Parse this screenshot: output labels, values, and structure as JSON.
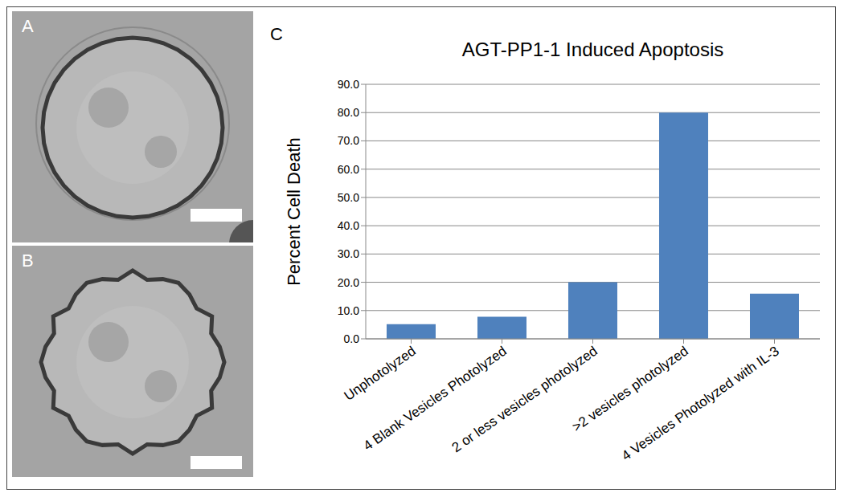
{
  "panel_labels": [
    "A",
    "B",
    "C"
  ],
  "chart_data": {
    "type": "bar",
    "title": "AGT-PP1-1 Induced Apoptosis",
    "y_label": "Percent Cell Death",
    "categories": [
      "Unphotolyzed",
      "4 Blank Vesicles Photolyzed",
      "2 or less vesicles photolyzed",
      ">2 vesicles photolyzed",
      "4 Vesicles Photolyzed with IL-3"
    ],
    "values": [
      5.2,
      7.8,
      20.0,
      80.0,
      16.0
    ],
    "color": "#4f81bd",
    "ylim": [
      0,
      90
    ],
    "yticks": [
      {
        "value": 0,
        "label": "0.0"
      },
      {
        "value": 10,
        "label": "10.0"
      },
      {
        "value": 20,
        "label": "20.0"
      },
      {
        "value": 30,
        "label": "30.0"
      },
      {
        "value": 40,
        "label": "40.0"
      },
      {
        "value": 50,
        "label": "50.0"
      },
      {
        "value": 60,
        "label": "60.0"
      },
      {
        "value": 70,
        "label": "70.0"
      },
      {
        "value": 80,
        "label": "80.0"
      },
      {
        "value": 90,
        "label": "90.0"
      }
    ],
    "grid": true
  }
}
